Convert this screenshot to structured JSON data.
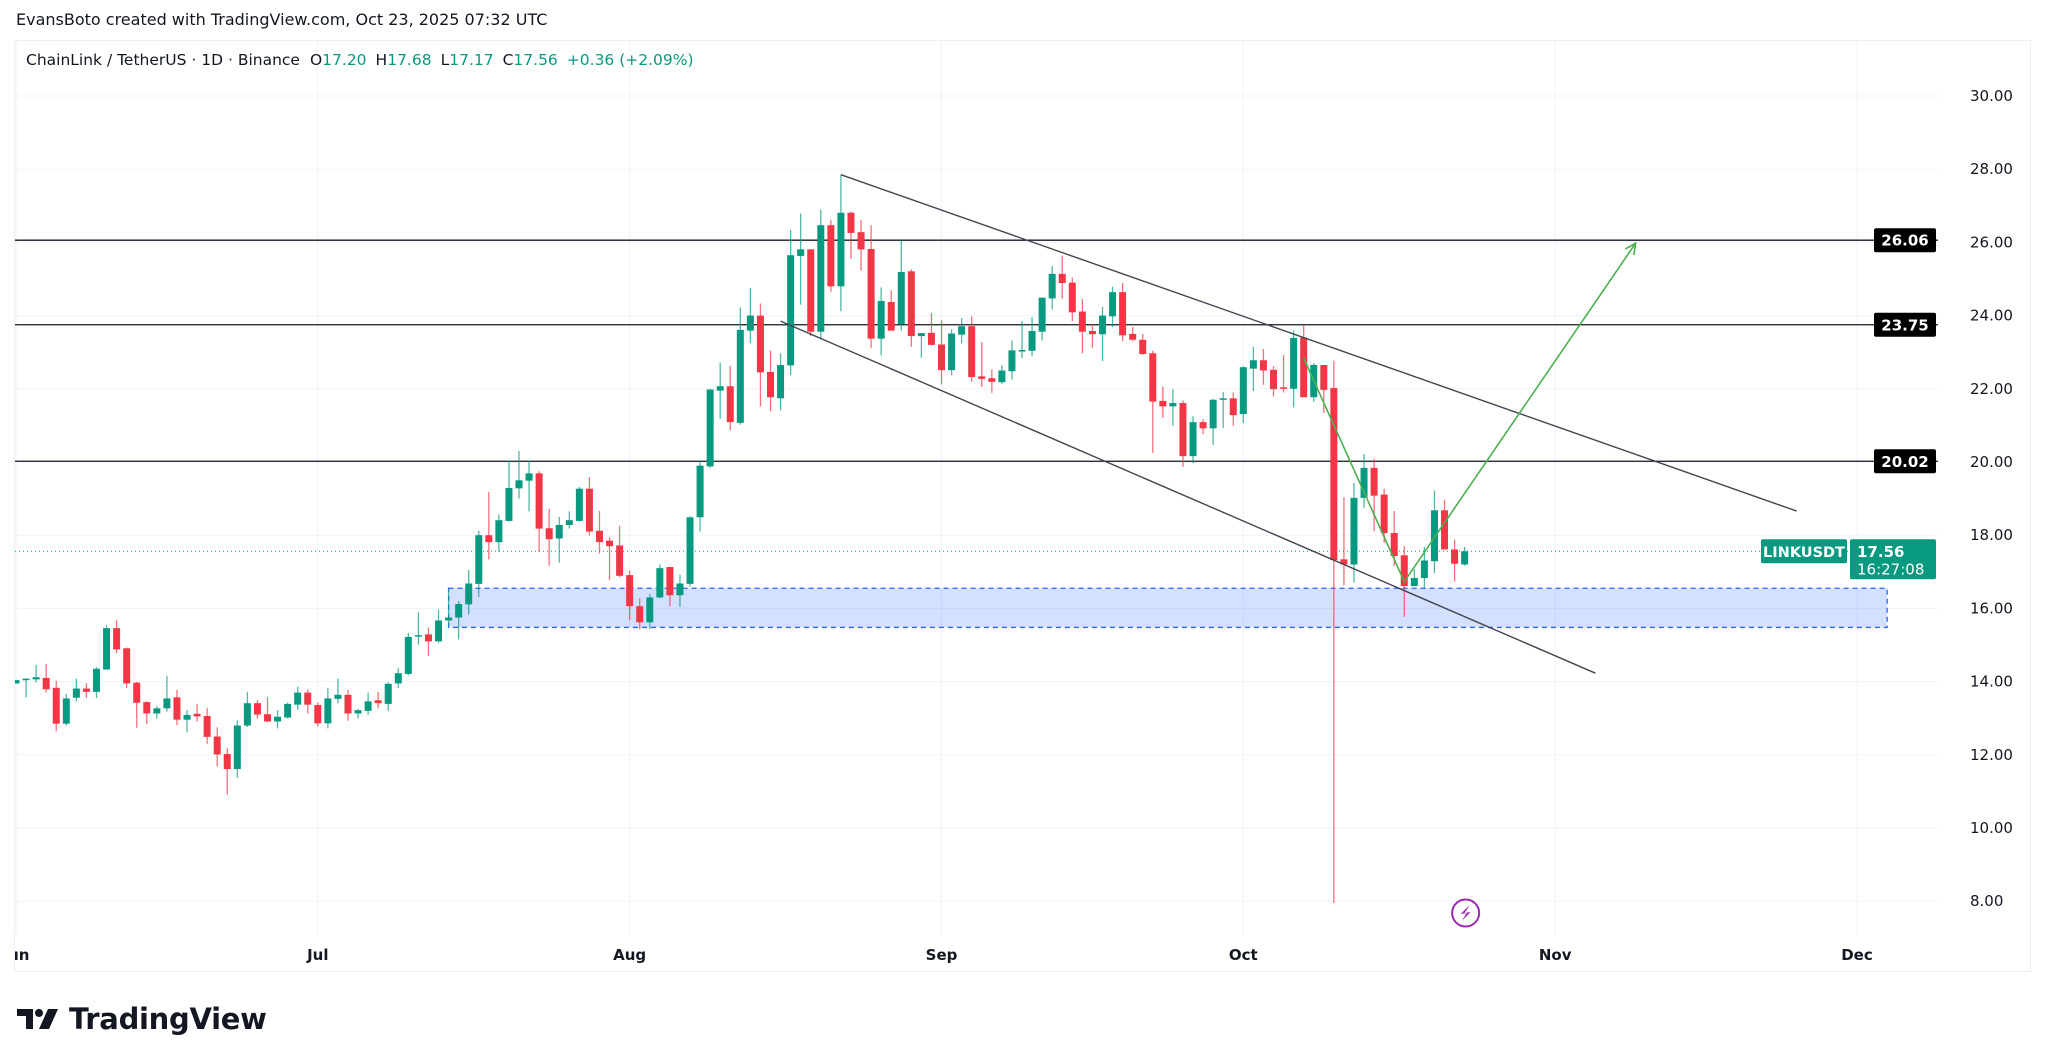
{
  "attribution": "EvansBoto created with TradingView.com, Oct 23, 2025 07:32 UTC",
  "legend": {
    "symbol": "ChainLink / TetherUS · 1D · Binance",
    "open_label": "O",
    "open": "17.20",
    "high_label": "H",
    "high": "17.68",
    "low_label": "L",
    "low": "17.17",
    "close_label": "C",
    "close": "17.56",
    "change": "+0.36 (+2.09%)"
  },
  "footer": {
    "brand": "TradingView"
  },
  "colors": {
    "up": "#089981",
    "down": "#f23645",
    "zone": "#2962ff",
    "projection": "#4caf50",
    "trendline": "#131722",
    "event_icon": "#9c27b0"
  },
  "icons": {
    "event": "lightning-icon",
    "logo": "tradingview-logo"
  },
  "chart_data": {
    "type": "candlestick",
    "title": "ChainLink / TetherUS · 1D · Binance",
    "timeframe": "1D",
    "ylim": [
      7.3,
      31.5
    ],
    "grid": true,
    "y_ticks": [
      "8.00",
      "10.00",
      "12.00",
      "14.00",
      "16.00",
      "18.00",
      "20.00",
      "22.00",
      "24.00",
      "26.00",
      "28.00",
      "30.00"
    ],
    "x_ticks": [
      {
        "label": "Jun",
        "date": "2025-06-01"
      },
      {
        "label": "Jul",
        "date": "2025-07-01"
      },
      {
        "label": "Aug",
        "date": "2025-08-01"
      },
      {
        "label": "Sep",
        "date": "2025-09-01"
      },
      {
        "label": "Oct",
        "date": "2025-10-01"
      },
      {
        "label": "Nov",
        "date": "2025-11-01"
      },
      {
        "label": "Dec",
        "date": "2025-12-01"
      }
    ],
    "candle_fields": [
      "date",
      "open",
      "high",
      "low",
      "close"
    ],
    "candles": [
      [
        "2025-06-01",
        13.95,
        14.05,
        13.94,
        14.04
      ],
      [
        "2025-06-02",
        14.04,
        14.08,
        13.57,
        14.08
      ],
      [
        "2025-06-03",
        14.06,
        14.46,
        13.98,
        14.12
      ],
      [
        "2025-06-04",
        14.1,
        14.48,
        13.7,
        13.79
      ],
      [
        "2025-06-05",
        13.83,
        14.02,
        12.64,
        12.85
      ],
      [
        "2025-06-06",
        12.85,
        13.67,
        12.8,
        13.54
      ],
      [
        "2025-06-07",
        13.56,
        14.08,
        13.46,
        13.81
      ],
      [
        "2025-06-08",
        13.81,
        13.96,
        13.55,
        13.72
      ],
      [
        "2025-06-09",
        13.72,
        14.39,
        13.55,
        14.35
      ],
      [
        "2025-06-10",
        14.33,
        15.54,
        14.33,
        15.46
      ],
      [
        "2025-06-11",
        15.46,
        15.68,
        14.78,
        14.88
      ],
      [
        "2025-06-12",
        14.91,
        14.93,
        13.83,
        13.95
      ],
      [
        "2025-06-13",
        13.97,
        13.99,
        12.74,
        13.42
      ],
      [
        "2025-06-14",
        13.44,
        13.46,
        12.83,
        13.13
      ],
      [
        "2025-06-15",
        13.13,
        13.33,
        12.99,
        13.27
      ],
      [
        "2025-06-16",
        13.27,
        14.16,
        13.18,
        13.54
      ],
      [
        "2025-06-17",
        13.57,
        13.77,
        12.81,
        12.96
      ],
      [
        "2025-06-18",
        12.96,
        13.22,
        12.61,
        13.09
      ],
      [
        "2025-06-19",
        13.12,
        13.39,
        12.91,
        13.05
      ],
      [
        "2025-06-20",
        13.06,
        13.28,
        12.3,
        12.49
      ],
      [
        "2025-06-21",
        12.5,
        12.75,
        11.68,
        12.01
      ],
      [
        "2025-06-22",
        12.02,
        12.18,
        10.91,
        11.61
      ],
      [
        "2025-06-23",
        11.61,
        12.94,
        11.37,
        12.8
      ],
      [
        "2025-06-24",
        12.8,
        13.72,
        12.76,
        13.41
      ],
      [
        "2025-06-25",
        13.41,
        13.5,
        12.99,
        13.1
      ],
      [
        "2025-06-26",
        13.11,
        13.58,
        12.89,
        12.91
      ],
      [
        "2025-06-27",
        12.91,
        13.22,
        12.72,
        13.04
      ],
      [
        "2025-06-28",
        13.02,
        13.43,
        12.99,
        13.39
      ],
      [
        "2025-06-29",
        13.37,
        13.86,
        13.23,
        13.7
      ],
      [
        "2025-06-30",
        13.7,
        13.78,
        13.13,
        13.37
      ],
      [
        "2025-07-01",
        13.36,
        13.43,
        12.77,
        12.86
      ],
      [
        "2025-07-02",
        12.86,
        13.83,
        12.72,
        13.54
      ],
      [
        "2025-07-03",
        13.53,
        14.08,
        13.41,
        13.64
      ],
      [
        "2025-07-04",
        13.64,
        13.78,
        12.93,
        13.13
      ],
      [
        "2025-07-05",
        13.13,
        13.25,
        12.99,
        13.22
      ],
      [
        "2025-07-06",
        13.2,
        13.7,
        13.09,
        13.46
      ],
      [
        "2025-07-07",
        13.49,
        13.72,
        13.27,
        13.41
      ],
      [
        "2025-07-08",
        13.39,
        13.98,
        13.2,
        13.94
      ],
      [
        "2025-07-09",
        13.95,
        14.37,
        13.82,
        14.23
      ],
      [
        "2025-07-10",
        14.21,
        15.33,
        14.17,
        15.22
      ],
      [
        "2025-07-11",
        15.23,
        15.89,
        15.01,
        15.27
      ],
      [
        "2025-07-12",
        15.29,
        15.48,
        14.7,
        15.1
      ],
      [
        "2025-07-13",
        15.1,
        15.97,
        15.06,
        15.67
      ],
      [
        "2025-07-14",
        15.67,
        16.52,
        15.53,
        15.75
      ],
      [
        "2025-07-15",
        15.75,
        16.2,
        15.15,
        16.12
      ],
      [
        "2025-07-16",
        16.11,
        17.05,
        15.83,
        16.68
      ],
      [
        "2025-07-17",
        16.67,
        18.12,
        16.31,
        18.0
      ],
      [
        "2025-07-18",
        18.0,
        19.18,
        17.34,
        17.81
      ],
      [
        "2025-07-19",
        17.81,
        18.57,
        17.55,
        18.41
      ],
      [
        "2025-07-20",
        18.39,
        20.03,
        18.37,
        19.29
      ],
      [
        "2025-07-21",
        19.28,
        20.3,
        19.0,
        19.5
      ],
      [
        "2025-07-22",
        19.49,
        20.03,
        18.65,
        19.69
      ],
      [
        "2025-07-23",
        19.69,
        19.75,
        17.55,
        18.18
      ],
      [
        "2025-07-24",
        18.19,
        18.72,
        17.17,
        17.89
      ],
      [
        "2025-07-25",
        17.91,
        18.5,
        17.25,
        18.28
      ],
      [
        "2025-07-26",
        18.28,
        18.65,
        18.18,
        18.41
      ],
      [
        "2025-07-27",
        18.39,
        19.32,
        18.37,
        19.27
      ],
      [
        "2025-07-28",
        19.27,
        19.59,
        17.99,
        18.1
      ],
      [
        "2025-07-29",
        18.12,
        18.66,
        17.5,
        17.81
      ],
      [
        "2025-07-30",
        17.85,
        17.94,
        16.77,
        17.7
      ],
      [
        "2025-07-31",
        17.72,
        18.26,
        16.85,
        16.89
      ],
      [
        "2025-08-01",
        16.91,
        17.03,
        15.67,
        16.06
      ],
      [
        "2025-08-02",
        16.06,
        16.28,
        15.43,
        15.62
      ],
      [
        "2025-08-03",
        15.62,
        16.39,
        15.43,
        16.3
      ],
      [
        "2025-08-04",
        16.3,
        17.2,
        16.28,
        17.1
      ],
      [
        "2025-08-05",
        17.13,
        17.13,
        16.06,
        16.36
      ],
      [
        "2025-08-06",
        16.36,
        16.92,
        16.04,
        16.68
      ],
      [
        "2025-08-07",
        16.67,
        18.51,
        16.59,
        18.49
      ],
      [
        "2025-08-08",
        18.49,
        20.02,
        18.1,
        19.9
      ],
      [
        "2025-08-09",
        19.88,
        22.0,
        19.84,
        21.98
      ],
      [
        "2025-08-10",
        21.95,
        22.71,
        21.18,
        22.07
      ],
      [
        "2025-08-11",
        22.07,
        22.63,
        20.87,
        21.09
      ],
      [
        "2025-08-12",
        21.07,
        24.22,
        21.02,
        23.61
      ],
      [
        "2025-08-13",
        23.59,
        24.75,
        23.25,
        24.0
      ],
      [
        "2025-08-14",
        24.0,
        24.33,
        21.52,
        22.45
      ],
      [
        "2025-08-15",
        22.46,
        23.05,
        21.39,
        21.77
      ],
      [
        "2025-08-16",
        21.74,
        22.97,
        21.41,
        22.65
      ],
      [
        "2025-08-17",
        22.64,
        26.34,
        22.37,
        25.65
      ],
      [
        "2025-08-18",
        25.63,
        26.79,
        24.3,
        25.81
      ],
      [
        "2025-08-19",
        25.81,
        25.82,
        23.44,
        23.56
      ],
      [
        "2025-08-20",
        23.56,
        26.9,
        23.38,
        26.47
      ],
      [
        "2025-08-21",
        26.47,
        26.61,
        24.65,
        24.8
      ],
      [
        "2025-08-22",
        24.8,
        27.85,
        24.12,
        26.81
      ],
      [
        "2025-08-23",
        26.81,
        26.84,
        25.55,
        26.26
      ],
      [
        "2025-08-24",
        26.28,
        26.62,
        25.23,
        25.81
      ],
      [
        "2025-08-25",
        25.82,
        26.47,
        23.11,
        23.37
      ],
      [
        "2025-08-26",
        23.37,
        24.77,
        22.91,
        24.4
      ],
      [
        "2025-08-27",
        24.37,
        24.69,
        23.59,
        23.59
      ],
      [
        "2025-08-28",
        23.77,
        26.06,
        23.59,
        25.19
      ],
      [
        "2025-08-29",
        25.21,
        25.26,
        23.15,
        23.44
      ],
      [
        "2025-08-30",
        23.44,
        23.52,
        22.85,
        23.52
      ],
      [
        "2025-08-31",
        23.53,
        24.07,
        23.18,
        23.2
      ],
      [
        "2025-09-01",
        23.21,
        23.87,
        22.12,
        22.51
      ],
      [
        "2025-09-02",
        22.51,
        23.62,
        22.37,
        23.51
      ],
      [
        "2025-09-03",
        23.48,
        23.93,
        23.24,
        23.71
      ],
      [
        "2025-09-04",
        23.71,
        23.98,
        22.19,
        22.32
      ],
      [
        "2025-09-05",
        22.34,
        23.27,
        22.05,
        22.27
      ],
      [
        "2025-09-06",
        22.29,
        22.53,
        21.89,
        22.19
      ],
      [
        "2025-09-07",
        22.18,
        22.64,
        22.13,
        22.5
      ],
      [
        "2025-09-08",
        22.48,
        23.32,
        22.25,
        23.05
      ],
      [
        "2025-09-09",
        23.04,
        23.85,
        22.84,
        23.06
      ],
      [
        "2025-09-10",
        23.04,
        23.96,
        22.89,
        23.58
      ],
      [
        "2025-09-11",
        23.56,
        24.49,
        23.32,
        24.49
      ],
      [
        "2025-09-12",
        24.47,
        25.35,
        24.17,
        25.14
      ],
      [
        "2025-09-13",
        25.14,
        25.64,
        24.46,
        24.89
      ],
      [
        "2025-09-14",
        24.9,
        25.04,
        23.85,
        24.09
      ],
      [
        "2025-09-15",
        24.11,
        24.46,
        22.97,
        23.56
      ],
      [
        "2025-09-16",
        23.58,
        23.77,
        23.12,
        23.49
      ],
      [
        "2025-09-17",
        23.49,
        24.24,
        22.76,
        24.0
      ],
      [
        "2025-09-18",
        23.98,
        24.79,
        23.69,
        24.64
      ],
      [
        "2025-09-19",
        24.64,
        24.89,
        23.3,
        23.46
      ],
      [
        "2025-09-20",
        23.5,
        23.69,
        23.3,
        23.34
      ],
      [
        "2025-09-21",
        23.34,
        23.5,
        22.93,
        22.95
      ],
      [
        "2025-09-22",
        22.97,
        23.04,
        20.25,
        21.65
      ],
      [
        "2025-09-23",
        21.67,
        22.06,
        21.2,
        21.52
      ],
      [
        "2025-09-24",
        21.52,
        21.99,
        20.99,
        21.61
      ],
      [
        "2025-09-25",
        21.61,
        21.68,
        19.87,
        20.16
      ],
      [
        "2025-09-26",
        20.16,
        21.25,
        19.97,
        21.09
      ],
      [
        "2025-09-27",
        21.09,
        21.17,
        20.76,
        20.92
      ],
      [
        "2025-09-28",
        20.92,
        21.72,
        20.47,
        21.7
      ],
      [
        "2025-09-29",
        21.7,
        21.91,
        20.93,
        21.74
      ],
      [
        "2025-09-30",
        21.74,
        21.9,
        20.99,
        21.28
      ],
      [
        "2025-10-01",
        21.31,
        22.61,
        21.06,
        22.59
      ],
      [
        "2025-10-02",
        22.55,
        23.15,
        21.94,
        22.78
      ],
      [
        "2025-10-03",
        22.78,
        23.09,
        22.11,
        22.5
      ],
      [
        "2025-10-04",
        22.52,
        22.62,
        21.79,
        21.99
      ],
      [
        "2025-10-05",
        22.04,
        22.92,
        21.9,
        22.02
      ],
      [
        "2025-10-06",
        22.0,
        23.59,
        21.49,
        23.39
      ],
      [
        "2025-10-07",
        23.4,
        23.75,
        21.77,
        21.77
      ],
      [
        "2025-10-08",
        21.77,
        22.7,
        21.65,
        22.65
      ],
      [
        "2025-10-09",
        22.65,
        22.65,
        21.34,
        21.97
      ],
      [
        "2025-10-10",
        22.02,
        22.77,
        7.95,
        17.32
      ],
      [
        "2025-10-11",
        17.34,
        19.04,
        16.63,
        17.2
      ],
      [
        "2025-10-12",
        17.2,
        19.43,
        16.7,
        19.02
      ],
      [
        "2025-10-13",
        19.02,
        20.22,
        18.75,
        19.84
      ],
      [
        "2025-10-14",
        19.84,
        20.08,
        18.11,
        19.08
      ],
      [
        "2025-10-15",
        19.11,
        19.27,
        17.79,
        18.06
      ],
      [
        "2025-10-16",
        18.06,
        18.66,
        17.16,
        17.43
      ],
      [
        "2025-10-17",
        17.45,
        17.7,
        15.77,
        16.61
      ],
      [
        "2025-10-18",
        16.61,
        17.07,
        16.61,
        16.83
      ],
      [
        "2025-10-19",
        16.83,
        17.68,
        16.57,
        17.31
      ],
      [
        "2025-10-20",
        17.29,
        19.22,
        16.96,
        18.68
      ],
      [
        "2025-10-21",
        18.68,
        18.97,
        17.61,
        17.61
      ],
      [
        "2025-10-22",
        17.61,
        17.88,
        16.73,
        17.22
      ],
      [
        "2025-10-23",
        17.2,
        17.68,
        17.17,
        17.56
      ]
    ],
    "last_price": {
      "symbol": "LINKUSDT",
      "price": "17.56",
      "countdown": "16:27:08",
      "value": 17.56
    },
    "horizontal_levels": [
      {
        "value": 26.06,
        "label": "26.06"
      },
      {
        "value": 23.75,
        "label": "23.75"
      },
      {
        "value": 20.02,
        "label": "20.02"
      }
    ],
    "trendlines": [
      {
        "name": "channel-upper",
        "from": [
          "2025-08-22",
          27.85
        ],
        "to": [
          "2025-11-25",
          18.66
        ]
      },
      {
        "name": "channel-lower",
        "from": [
          "2025-08-16",
          23.85
        ],
        "to": [
          "2025-11-05",
          14.23
        ]
      }
    ],
    "support_zone": {
      "from_date": "2025-07-14",
      "to_date": "2025-12-04",
      "top": 16.55,
      "bottom": 15.48
    },
    "projection_path": [
      [
        "2025-10-07",
        22.84
      ],
      [
        "2025-10-17",
        16.73
      ],
      [
        "2025-11-09",
        25.98
      ]
    ],
    "event_marker": {
      "date": "2025-10-23",
      "icon": "lightning-icon"
    }
  }
}
